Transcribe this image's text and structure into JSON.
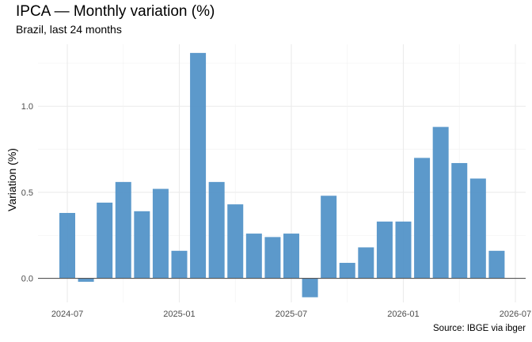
{
  "title": "IPCA — Monthly variation (%)",
  "subtitle": "Brazil, last 24 months",
  "caption": "Source: IBGE via ibger",
  "chart_data": {
    "type": "bar",
    "title": "IPCA — Monthly variation (%)",
    "subtitle": "Brazil, last 24 months",
    "xlabel": "",
    "ylabel": "Variation (%)",
    "categories": [
      "2024-07",
      "2024-08",
      "2024-09",
      "2024-10",
      "2024-11",
      "2024-12",
      "2025-01",
      "2025-02",
      "2025-03",
      "2025-04",
      "2025-05",
      "2025-06",
      "2025-07",
      "2025-08",
      "2025-09",
      "2025-10",
      "2025-11",
      "2025-12",
      "2026-01",
      "2026-02",
      "2026-03",
      "2026-04",
      "2026-05",
      "2026-06"
    ],
    "values": [
      0.38,
      -0.02,
      0.44,
      0.56,
      0.39,
      0.52,
      0.16,
      1.31,
      0.56,
      0.43,
      0.26,
      0.24,
      0.26,
      -0.11,
      0.48,
      0.09,
      0.18,
      0.33,
      0.33,
      0.7,
      0.88,
      0.67,
      0.58,
      0.16
    ],
    "x_ticks": [
      "2024-07",
      "2025-01",
      "2025-07",
      "2026-01",
      "2026-07"
    ],
    "y_ticks": [
      "0.0",
      "0.5",
      "1.0"
    ],
    "ylim": [
      -0.14,
      1.36
    ],
    "bar_color": "#5393c8",
    "grid": true,
    "legend": "none"
  }
}
